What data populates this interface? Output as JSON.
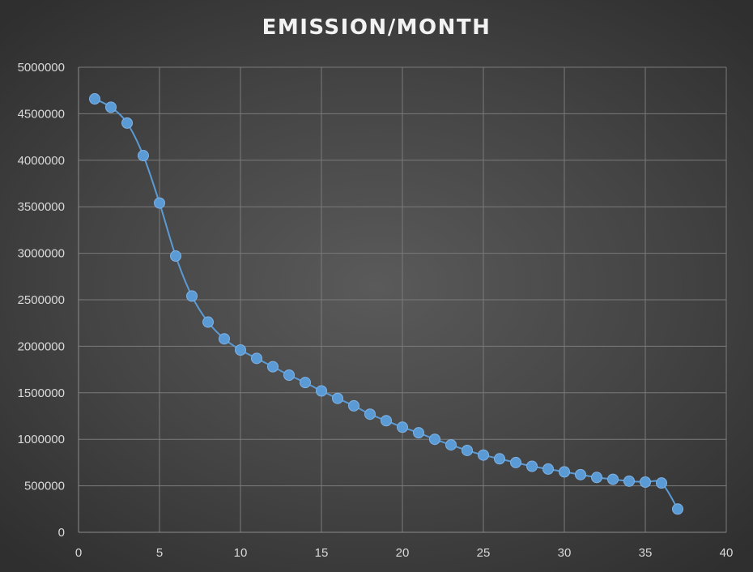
{
  "chart_data": {
    "type": "scatter",
    "title": "EMISSION/MONTH",
    "xlabel": "",
    "ylabel": "",
    "xlim": [
      0,
      40
    ],
    "ylim": [
      0,
      5000000
    ],
    "x_ticks": [
      "0",
      "5",
      "10",
      "15",
      "20",
      "25",
      "30",
      "35",
      "40"
    ],
    "y_ticks": [
      "0",
      "500000",
      "1000000",
      "1500000",
      "2000000",
      "2500000",
      "3000000",
      "3500000",
      "4000000",
      "4500000",
      "5000000"
    ],
    "grid": true,
    "legend": "none",
    "series": [
      {
        "color": "#5b9bd5",
        "markers": true,
        "line": "smooth",
        "points": [
          [
            1,
            4660000
          ],
          [
            2,
            4570000
          ],
          [
            3,
            4400000
          ],
          [
            4,
            4050000
          ],
          [
            5,
            3540000
          ],
          [
            6,
            2970000
          ],
          [
            7,
            2540000
          ],
          [
            8,
            2260000
          ],
          [
            9,
            2080000
          ],
          [
            10,
            1960000
          ],
          [
            11,
            1870000
          ],
          [
            12,
            1780000
          ],
          [
            13,
            1690000
          ],
          [
            14,
            1610000
          ],
          [
            15,
            1520000
          ],
          [
            16,
            1440000
          ],
          [
            17,
            1360000
          ],
          [
            18,
            1270000
          ],
          [
            19,
            1200000
          ],
          [
            20,
            1130000
          ],
          [
            21,
            1070000
          ],
          [
            22,
            1000000
          ],
          [
            23,
            940000
          ],
          [
            24,
            880000
          ],
          [
            25,
            830000
          ],
          [
            26,
            790000
          ],
          [
            27,
            750000
          ],
          [
            28,
            710000
          ],
          [
            29,
            680000
          ],
          [
            30,
            650000
          ],
          [
            31,
            620000
          ],
          [
            32,
            590000
          ],
          [
            33,
            570000
          ],
          [
            34,
            550000
          ],
          [
            35,
            540000
          ],
          [
            36,
            530000
          ],
          [
            37,
            250000
          ]
        ]
      }
    ]
  }
}
